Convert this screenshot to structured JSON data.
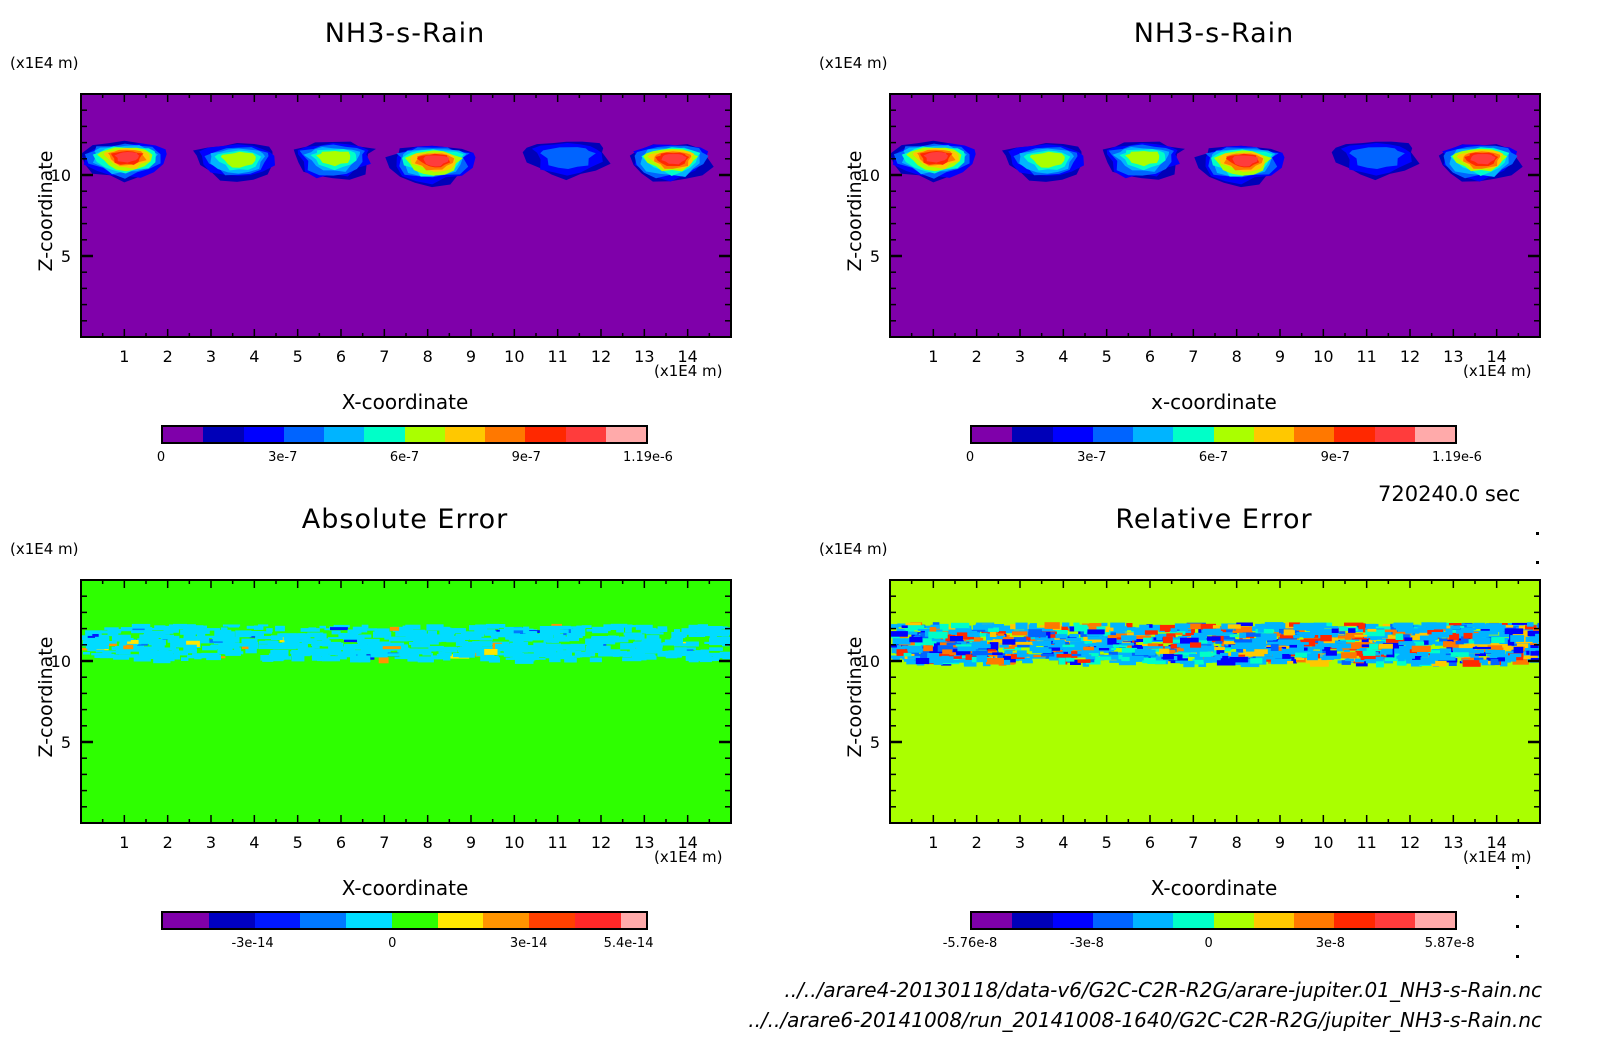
{
  "figure": {
    "time_label": "720240.0 sec",
    "files": [
      "../../arare4-20130118/data-v6/G2C-C2R-R2G/arare-jupiter.01_NH3-s-Rain.nc",
      "../../arare6-20141008/run_20141008-1640/G2C-C2R-R2G/jupiter_NH3-s-Rain.nc"
    ]
  },
  "chart_data": [
    {
      "type": "heatmap",
      "title": "NH3-s-Rain",
      "xlabel": "X-coordinate",
      "ylabel": "Z-coordinate",
      "x_unit": "(x1E4 m)",
      "y_unit": "(x1E4 m)",
      "xlim": [
        0,
        15
      ],
      "ylim": [
        0,
        15
      ],
      "x_ticks": [
        "1",
        "2",
        "3",
        "4",
        "5",
        "6",
        "7",
        "8",
        "9",
        "10",
        "11",
        "12",
        "13",
        "14"
      ],
      "y_ticks": [
        "5",
        "10"
      ],
      "background_color": "#7f00aa",
      "colorbar": {
        "colors": [
          "#7f00aa",
          "#0000b8",
          "#0000ff",
          "#0064ff",
          "#00b4ff",
          "#00ffc8",
          "#aaff00",
          "#ffc800",
          "#ff7800",
          "#ff2800",
          "#ff3c3c",
          "#ffaaaa"
        ],
        "tick_labels": [
          "0",
          "3e-7",
          "6e-7",
          "9e-7",
          "1.19e-6"
        ],
        "tick_positions": [
          0,
          0.25,
          0.5,
          0.75,
          1.0
        ],
        "range": [
          0,
          1.19e-06
        ]
      },
      "features": [
        {
          "x": 1.0,
          "z": 11.3,
          "peak_level": 10
        },
        {
          "x": 3.6,
          "z": 11.2,
          "peak_level": 6
        },
        {
          "x": 5.8,
          "z": 11.3,
          "peak_level": 6
        },
        {
          "x": 8.1,
          "z": 11.1,
          "peak_level": 10
        },
        {
          "x": 11.2,
          "z": 11.4,
          "peak_level": 3
        },
        {
          "x": 13.6,
          "z": 11.2,
          "peak_level": 10
        }
      ]
    },
    {
      "type": "heatmap",
      "title": "NH3-s-Rain",
      "xlabel": "x-coordinate",
      "ylabel": "Z-coordinate",
      "x_unit": "(x1E4 m)",
      "y_unit": "(x1E4 m)",
      "xlim": [
        0,
        15
      ],
      "ylim": [
        0,
        15
      ],
      "x_ticks": [
        "1",
        "2",
        "3",
        "4",
        "5",
        "6",
        "7",
        "8",
        "9",
        "10",
        "11",
        "12",
        "13",
        "14"
      ],
      "y_ticks": [
        "5",
        "10"
      ],
      "background_color": "#7f00aa",
      "colorbar": {
        "colors": [
          "#7f00aa",
          "#0000b8",
          "#0000ff",
          "#0064ff",
          "#00b4ff",
          "#00ffc8",
          "#aaff00",
          "#ffc800",
          "#ff7800",
          "#ff2800",
          "#ff3c3c",
          "#ffaaaa"
        ],
        "tick_labels": [
          "0",
          "3e-7",
          "6e-7",
          "9e-7",
          "1.19e-6"
        ],
        "tick_positions": [
          0,
          0.25,
          0.5,
          0.75,
          1.0
        ],
        "range": [
          0,
          1.19e-06
        ]
      },
      "features": [
        {
          "x": 1.0,
          "z": 11.3,
          "peak_level": 10
        },
        {
          "x": 3.6,
          "z": 11.2,
          "peak_level": 6
        },
        {
          "x": 5.8,
          "z": 11.3,
          "peak_level": 6
        },
        {
          "x": 8.1,
          "z": 11.1,
          "peak_level": 10
        },
        {
          "x": 11.2,
          "z": 11.4,
          "peak_level": 3
        },
        {
          "x": 13.6,
          "z": 11.2,
          "peak_level": 10
        }
      ]
    },
    {
      "type": "heatmap",
      "title": "Absolute Error",
      "xlabel": "X-coordinate",
      "ylabel": "Z-coordinate",
      "x_unit": "(x1E4 m)",
      "y_unit": "(x1E4 m)",
      "xlim": [
        0,
        15
      ],
      "ylim": [
        0,
        15
      ],
      "x_ticks": [
        "1",
        "2",
        "3",
        "4",
        "5",
        "6",
        "7",
        "8",
        "9",
        "10",
        "11",
        "12",
        "13",
        "14"
      ],
      "y_ticks": [
        "5",
        "10"
      ],
      "background_color": "#2eff00",
      "colorbar": {
        "colors": [
          "#8000aa",
          "#0000c0",
          "#0018ff",
          "#0078ff",
          "#00dcff",
          "#2eff00",
          "#ffe800",
          "#ff9400",
          "#ff4000",
          "#ff2828",
          "#ffaaaa"
        ],
        "tick_labels": [
          "-3e-14",
          "0",
          "3e-14",
          "5.4e-14"
        ],
        "tick_positions": [
          0.188,
          0.475,
          0.755,
          0.96
        ],
        "range": [
          -6.9e-14,
          5.4e-14
        ]
      },
      "noise_band": {
        "z_min": 10.2,
        "z_max": 12.3,
        "main_color": "#00dcff",
        "accent_colors": [
          "#0078ff",
          "#ffe800",
          "#ff9400",
          "#0018ff"
        ]
      }
    },
    {
      "type": "heatmap",
      "title": "Relative Error",
      "xlabel": "X-coordinate",
      "ylabel": "Z-coordinate",
      "x_unit": "(x1E4 m)",
      "y_unit": "(x1E4 m)",
      "xlim": [
        0,
        15
      ],
      "ylim": [
        0,
        15
      ],
      "x_ticks": [
        "1",
        "2",
        "3",
        "4",
        "5",
        "6",
        "7",
        "8",
        "9",
        "10",
        "11",
        "12",
        "13",
        "14"
      ],
      "y_ticks": [
        "5",
        "10"
      ],
      "background_color": "#aaff00",
      "colorbar": {
        "colors": [
          "#7f00aa",
          "#0000b8",
          "#0000ff",
          "#0064ff",
          "#00b4ff",
          "#00ffc8",
          "#aaff00",
          "#ffc800",
          "#ff7800",
          "#ff2800",
          "#ff3c3c",
          "#ffaaaa"
        ],
        "tick_labels": [
          "-5.76e-8",
          "-3e-8",
          "0",
          "3e-8",
          "5.87e-8"
        ],
        "tick_positions": [
          0.0,
          0.24,
          0.49,
          0.74,
          0.985
        ],
        "range": [
          -5.76e-08,
          5.87e-08
        ]
      },
      "noise_band": {
        "z_min": 10.0,
        "z_max": 12.4,
        "main_color": "#00b4ff",
        "accent_colors": [
          "#0064ff",
          "#ffc800",
          "#ff7800",
          "#0000ff",
          "#ff2800",
          "#00ffc8"
        ]
      }
    }
  ]
}
